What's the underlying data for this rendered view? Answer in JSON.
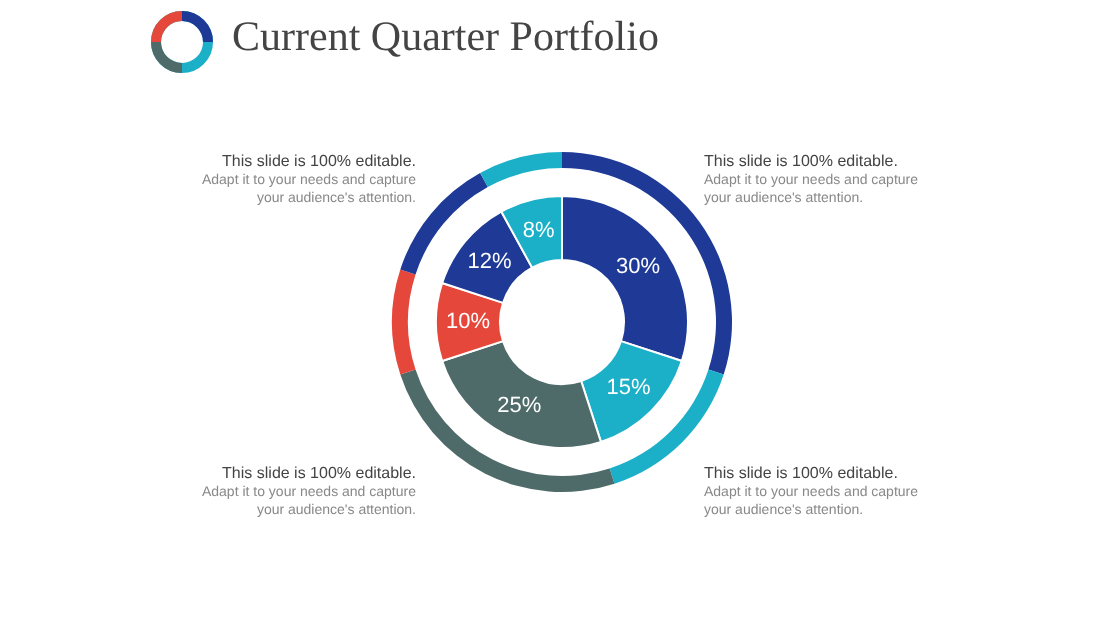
{
  "chart_data": {
    "type": "donut",
    "title": "Current Quarter Portfolio",
    "categories": [
      null,
      null,
      null,
      null,
      null,
      null
    ],
    "series": [
      {
        "values": [
          30,
          15,
          25,
          10,
          12,
          8
        ]
      },
      {
        "values": [
          30,
          15,
          25,
          10,
          12,
          8
        ]
      }
    ],
    "value_labels": [
      "30%",
      "15%",
      "25%",
      "10%",
      "12%",
      "8%"
    ],
    "colors": [
      "#1e3a96",
      "#1bb0c8",
      "#4e6b6a",
      "#e5473b",
      "#1e3a96",
      "#1bb0c8"
    ],
    "annotations": [
      "This slide is 100% editable.",
      "Adapt it to your needs and capture your audience's attention.",
      "This slide is 100% editable.",
      "Adapt it to your needs and capture your audience's attention.",
      "This slide is 100% editable.",
      "Adapt it to your needs and capture your audience's attention.",
      "This slide is 100% editable.",
      "Adapt it to your needs and capture your audience's attention."
    ]
  }
}
